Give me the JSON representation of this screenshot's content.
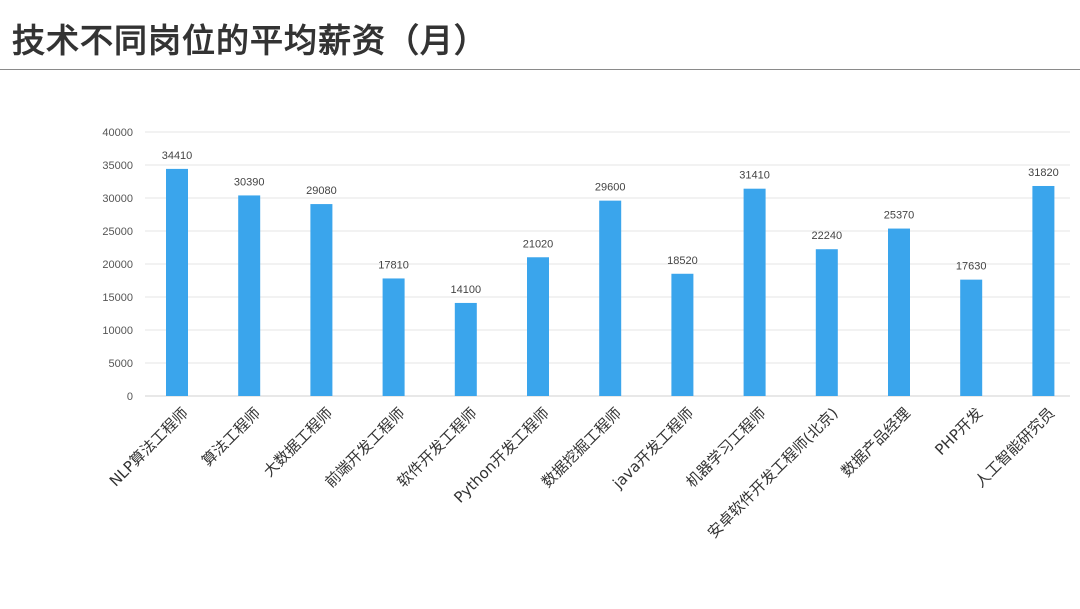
{
  "page": {
    "title": "技术不同岗位的平均薪资（月）"
  },
  "colors": {
    "bar": "#3aa5ec",
    "grid": "#e6e6e6",
    "axis": "#d0d0d0"
  },
  "chart_data": {
    "type": "bar",
    "title": "",
    "xlabel": "",
    "ylabel": "",
    "ylim": [
      0,
      40000
    ],
    "yticks": [
      0,
      5000,
      10000,
      15000,
      20000,
      25000,
      30000,
      35000,
      40000
    ],
    "grid": true,
    "legend": "none",
    "categories": [
      "NLP算法工程师",
      "算法工程师",
      "大数据工程师",
      "前端开发工程师",
      "软件开发工程师",
      "Python开发工程师",
      "数据挖掘工程师",
      "java开发工程师",
      "机器学习工程师",
      "安卓软件开发工程师(北京)",
      "数据产品经理",
      "PHP开发",
      "人工智能研究员"
    ],
    "values": [
      34410,
      30390,
      29080,
      17810,
      14100,
      21020,
      29600,
      18520,
      31410,
      22240,
      25370,
      17630,
      31820
    ]
  }
}
